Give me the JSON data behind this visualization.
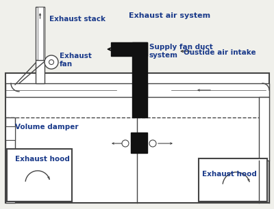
{
  "background_color": "#f0f0eb",
  "duct_color": "#444444",
  "black_color": "#111111",
  "text_color": "#1a3a8a",
  "figsize": [
    4.0,
    3.06
  ],
  "dpi": 100,
  "labels": {
    "exhaust_stack": "Exhaust stack",
    "exhaust_fan": "Exhaust\nfan",
    "exhaust_air_system": "Exhaust air system",
    "supply_fan_duct": "Supply fan duct\nsystem",
    "outside_air_intake": "Oustide air intake",
    "volume_damper": "Volume damper",
    "exhaust_hood_left": "Exhaust hood",
    "exhaust_hood_right": "Exhaust hood"
  }
}
